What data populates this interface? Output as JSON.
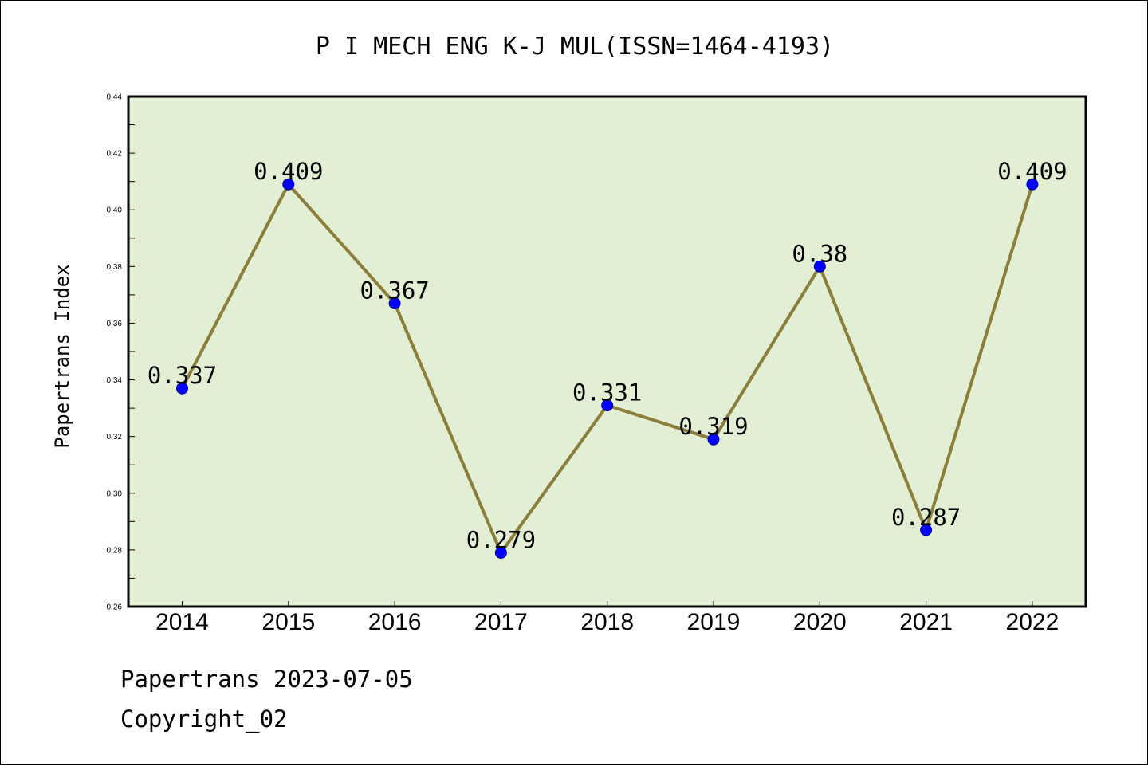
{
  "chart_data": {
    "type": "line",
    "title": "P I MECH ENG K-J MUL(ISSN=1464-4193)",
    "xlabel": "",
    "ylabel": "Papertrans Index",
    "categories": [
      "2014",
      "2015",
      "2016",
      "2017",
      "2018",
      "2019",
      "2020",
      "2021",
      "2022"
    ],
    "series": [
      {
        "values": [
          0.337,
          0.409,
          0.367,
          0.279,
          0.331,
          0.319,
          0.38,
          0.287,
          0.409
        ],
        "data_labels": [
          "0.337",
          "0.409",
          "0.367",
          "0.279",
          "0.331",
          "0.319",
          "0.38",
          "0.287",
          "0.409"
        ],
        "line_color": "#8b7d3a",
        "marker_color": "#0000ff"
      }
    ],
    "ylim": [
      0.26,
      0.44
    ],
    "yticks": [
      "0.26",
      "0.28",
      "0.30",
      "0.32",
      "0.34",
      "0.36",
      "0.38",
      "0.40",
      "0.42",
      "0.44"
    ],
    "plot_background": "#e2efd5",
    "grid": false,
    "legend": "none"
  },
  "footer": {
    "source": "Papertrans 2023-07-05",
    "copyright": "Copyright_02"
  }
}
